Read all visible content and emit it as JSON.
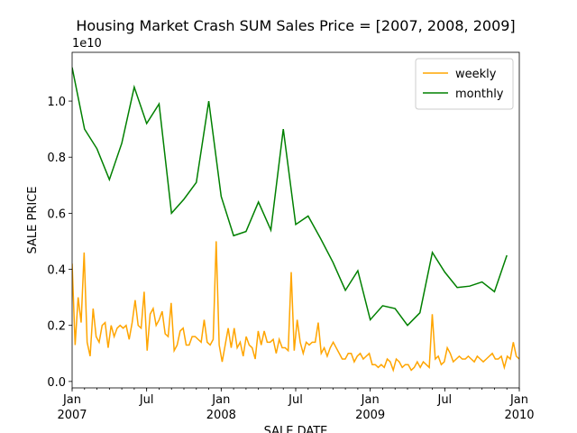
{
  "chart_data": {
    "type": "line",
    "title": "Housing Market Crash SUM Sales Price = [2007, 2008, 2009]",
    "xlabel": "SALE DATE",
    "ylabel": "SALE PRICE",
    "y_offset_label": "1e10",
    "xlim": [
      "2007-01",
      "2010-01"
    ],
    "xticks": [
      {
        "value": "2007-01",
        "label": "Jan",
        "year": "2007"
      },
      {
        "value": "2007-07",
        "label": "Jul"
      },
      {
        "value": "2008-01",
        "label": "Jan",
        "year": "2008"
      },
      {
        "value": "2008-07",
        "label": "Jul"
      },
      {
        "value": "2009-01",
        "label": "Jan",
        "year": "2009"
      },
      {
        "value": "2009-07",
        "label": "Jul"
      },
      {
        "value": "2010-01",
        "label": "Jan",
        "year": "2010"
      }
    ],
    "ylim": [
      -0.023,
      1.174
    ],
    "yticks": [
      {
        "value": 0,
        "label": "0.0"
      },
      {
        "value": 0.2,
        "label": "0.2"
      },
      {
        "value": 0.4,
        "label": "0.4"
      },
      {
        "value": 0.6,
        "label": "0.6"
      },
      {
        "value": 0.8,
        "label": "0.8"
      },
      {
        "value": 1,
        "label": "1.0"
      }
    ],
    "legend": "upper right",
    "series": [
      {
        "name": "weekly",
        "color": "#ffa500",
        "values": [
          0.42,
          0.13,
          0.3,
          0.21,
          0.46,
          0.14,
          0.09,
          0.26,
          0.16,
          0.14,
          0.2,
          0.21,
          0.12,
          0.2,
          0.16,
          0.19,
          0.2,
          0.19,
          0.2,
          0.15,
          0.21,
          0.29,
          0.2,
          0.19,
          0.32,
          0.11,
          0.24,
          0.26,
          0.2,
          0.22,
          0.25,
          0.17,
          0.16,
          0.28,
          0.11,
          0.13,
          0.18,
          0.19,
          0.13,
          0.13,
          0.16,
          0.16,
          0.15,
          0.14,
          0.22,
          0.14,
          0.13,
          0.15,
          0.5,
          0.13,
          0.07,
          0.13,
          0.19,
          0.12,
          0.19,
          0.12,
          0.14,
          0.09,
          0.16,
          0.13,
          0.12,
          0.08,
          0.18,
          0.13,
          0.18,
          0.14,
          0.14,
          0.15,
          0.1,
          0.15,
          0.12,
          0.12,
          0.11,
          0.39,
          0.11,
          0.22,
          0.14,
          0.1,
          0.14,
          0.13,
          0.14,
          0.14,
          0.21,
          0.1,
          0.12,
          0.09,
          0.12,
          0.14,
          0.12,
          0.1,
          0.08,
          0.08,
          0.1,
          0.1,
          0.07,
          0.09,
          0.1,
          0.08,
          0.09,
          0.1,
          0.06,
          0.06,
          0.05,
          0.06,
          0.05,
          0.08,
          0.07,
          0.04,
          0.08,
          0.07,
          0.05,
          0.06,
          0.06,
          0.04,
          0.05,
          0.07,
          0.05,
          0.07,
          0.06,
          0.05,
          0.24,
          0.08,
          0.09,
          0.06,
          0.07,
          0.12,
          0.1,
          0.07,
          0.08,
          0.09,
          0.08,
          0.08,
          0.09,
          0.08,
          0.07,
          0.09,
          0.08,
          0.07,
          0.08,
          0.09,
          0.1,
          0.08,
          0.08,
          0.09,
          0.05,
          0.09,
          0.08,
          0.14,
          0.09,
          0.08
        ]
      },
      {
        "name": "monthly",
        "color": "#008000",
        "x": [
          "2007-01",
          "2007-02",
          "2007-03",
          "2007-04",
          "2007-05",
          "2007-06",
          "2007-07",
          "2007-08",
          "2007-09",
          "2007-10",
          "2007-11",
          "2007-12",
          "2008-01",
          "2008-02",
          "2008-03",
          "2008-04",
          "2008-05",
          "2008-06",
          "2008-07",
          "2008-08",
          "2008-09",
          "2008-10",
          "2008-11",
          "2008-12",
          "2009-01",
          "2009-02",
          "2009-03",
          "2009-04",
          "2009-05",
          "2009-06",
          "2009-07",
          "2009-08",
          "2009-09",
          "2009-10",
          "2009-11",
          "2009-12"
        ],
        "values": [
          1.12,
          0.9,
          0.83,
          0.72,
          0.85,
          1.05,
          0.92,
          0.99,
          0.6,
          0.65,
          0.71,
          1.0,
          0.66,
          0.52,
          0.535,
          0.64,
          0.54,
          0.9,
          0.56,
          0.59,
          0.51,
          0.425,
          0.325,
          0.395,
          0.22,
          0.27,
          0.26,
          0.2,
          0.245,
          0.46,
          0.39,
          0.335,
          0.34,
          0.355,
          0.32,
          0.45
        ]
      }
    ]
  }
}
